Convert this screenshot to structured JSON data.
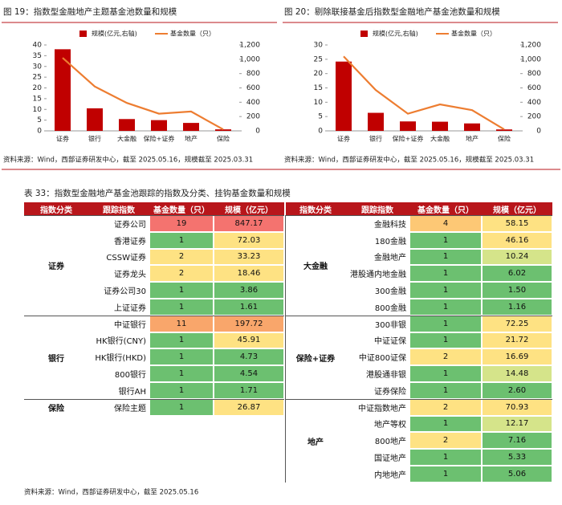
{
  "chart_data": [
    {
      "type": "bar",
      "title": "图 19：指数型金融地产主题基金池数量和规模",
      "categories": [
        "证券",
        "银行",
        "大金融",
        "保险+证券",
        "地产",
        "保险"
      ],
      "series": [
        {
          "name": "规模(亿元,右轴)",
          "type": "bar",
          "color": "#c00000",
          "values": [
            38,
            10.5,
            5.5,
            5,
            3.7,
            0.7
          ]
        },
        {
          "name": "基金数量（只）",
          "type": "line",
          "color": "#ed7d31",
          "axis": "y2",
          "values": [
            1020,
            620,
            390,
            240,
            270,
            20
          ]
        }
      ],
      "ylim": [
        0,
        40
      ],
      "yticks": [
        0,
        5,
        10,
        15,
        20,
        25,
        30,
        35,
        40
      ],
      "y2lim": [
        0,
        1200
      ],
      "y2ticks": [
        0,
        200,
        400,
        600,
        800,
        {
          "value": 1000,
          "label": "1,000"
        },
        {
          "value": 1200,
          "label": "1,200"
        }
      ],
      "source": "资料来源：Wind，西部证券研发中心，截至 2025.05.16，规模截至 2025.03.31"
    },
    {
      "type": "bar",
      "title": "图 20：剔除联接基金后指数型金融地产基金池数量和规模",
      "categories": [
        "证券",
        "银行",
        "保险+证券",
        "大金融",
        "地产",
        "保险"
      ],
      "series": [
        {
          "name": "规模(亿元,右轴)",
          "type": "bar",
          "color": "#c00000",
          "values": [
            24.2,
            6.3,
            3.3,
            3.2,
            2.6,
            0.5
          ]
        },
        {
          "name": "基金数量（只）",
          "type": "line",
          "color": "#ed7d31",
          "axis": "y2",
          "values": [
            1040,
            570,
            240,
            370,
            290,
            20
          ]
        }
      ],
      "ylim": [
        0,
        30
      ],
      "yticks": [
        0,
        5,
        10,
        15,
        20,
        25,
        30
      ],
      "y2lim": [
        0,
        1200
      ],
      "y2ticks": [
        0,
        200,
        400,
        600,
        800,
        {
          "value": 1000,
          "label": "1,000"
        },
        {
          "value": 1200,
          "label": "1,200"
        }
      ],
      "source": "资料来源：Wind，西部证券研发中心，截至 2025.05.16，规模截至 2025.03.31"
    }
  ],
  "table": {
    "title": "表 33：指数型金融地产基金池跟踪的指数及分类、挂钩基金数量和规模",
    "header": [
      "指数分类",
      "跟踪指数",
      "基金数量（只）",
      "规模（亿元）"
    ],
    "left": [
      {
        "category": "证券",
        "rows": [
          [
            "证券公司",
            19,
            "847.17"
          ],
          [
            "香港证券",
            1,
            "72.03"
          ],
          [
            "CSSW证券",
            2,
            "33.23"
          ],
          [
            "证券龙头",
            2,
            "18.46"
          ],
          [
            "证券公司30",
            1,
            "3.86"
          ],
          [
            "上证证券",
            1,
            "1.61"
          ]
        ]
      },
      {
        "category": "银行",
        "rows": [
          [
            "中证银行",
            11,
            "197.72"
          ],
          [
            "HK银行(CNY)",
            1,
            "45.91"
          ],
          [
            "HK银行(HKD)",
            1,
            "4.73"
          ],
          [
            "800银行",
            1,
            "4.54"
          ],
          [
            "银行AH",
            1,
            "1.71"
          ]
        ]
      },
      {
        "category": "保险",
        "rows": [
          [
            "保险主题",
            1,
            "26.87"
          ]
        ]
      }
    ],
    "right": [
      {
        "category": "大金融",
        "rows": [
          [
            "金融科技",
            4,
            "58.15"
          ],
          [
            "180金融",
            1,
            "46.16"
          ],
          [
            "金融地产",
            1,
            "10.24"
          ],
          [
            "港股通内地金融",
            1,
            "6.02"
          ],
          [
            "300金融",
            1,
            "1.50"
          ],
          [
            "800金融",
            1,
            "1.16"
          ]
        ]
      },
      {
        "category": "保险+证券",
        "rows": [
          [
            "300非银",
            1,
            "72.25"
          ],
          [
            "中证证保",
            1,
            "21.72"
          ],
          [
            "中证800证保",
            2,
            "16.69"
          ],
          [
            "港股通非银",
            1,
            "14.48"
          ],
          [
            "证券保险",
            1,
            "2.60"
          ]
        ]
      },
      {
        "category": "地产",
        "rows": [
          [
            "中证指数地产",
            2,
            "70.93"
          ],
          [
            "地产等权",
            1,
            "12.17"
          ],
          [
            "800地产",
            2,
            "7.16"
          ],
          [
            "国证地产",
            1,
            "5.33"
          ],
          [
            "内地地产",
            1,
            "5.06"
          ]
        ]
      }
    ],
    "source": "资料来源：Wind，西部证券研发中心，截至 2025.05.16"
  }
}
